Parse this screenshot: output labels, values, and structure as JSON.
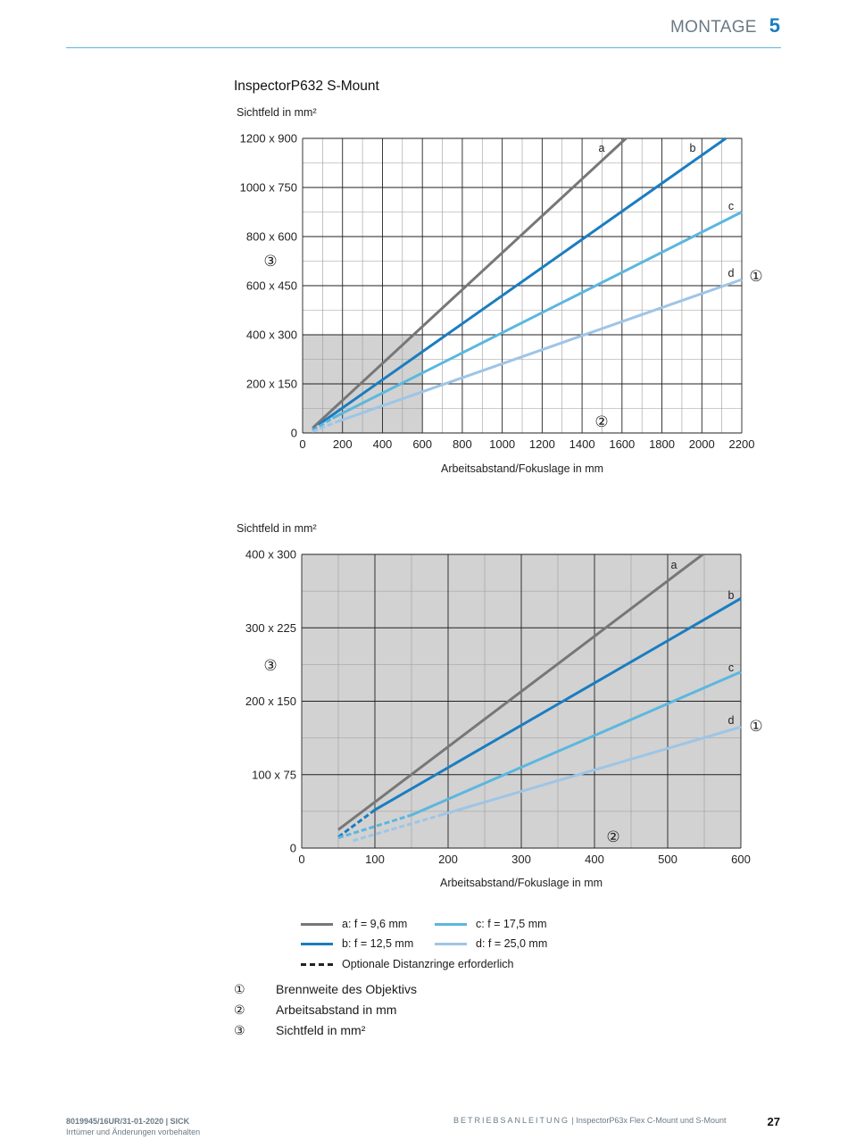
{
  "header": {
    "section_name": "MONTAGE",
    "section_number": "5"
  },
  "chart_data": [
    {
      "type": "line",
      "title": "InspectorP632 S-Mount",
      "ylabel": "Sichtfeld in mm²",
      "xlabel": "Arbeitsabstand/Fokuslage in mm",
      "xlim": [
        0,
        2200
      ],
      "ylim": [
        0,
        1200
      ],
      "x_ticks": [
        0,
        200,
        400,
        600,
        800,
        1000,
        1200,
        1400,
        1600,
        1800,
        2000,
        2200
      ],
      "y_ticks": [
        {
          "value": 0,
          "label": "0"
        },
        {
          "value": 200,
          "label": "200 x 150"
        },
        {
          "value": 400,
          "label": "400 x 300"
        },
        {
          "value": 600,
          "label": "600 x 450"
        },
        {
          "value": 800,
          "label": "800 x 600"
        },
        {
          "value": 1000,
          "label": "1000 x 750"
        },
        {
          "value": 1200,
          "label": "1200 x 900"
        }
      ],
      "shaded_region": {
        "x": [
          0,
          600
        ],
        "y": [
          0,
          400
        ]
      },
      "grid": true,
      "series": [
        {
          "name": "a",
          "color": "#777777",
          "dashed": {
            "x": [
              50,
              50
            ],
            "y": [
              20,
              20
            ]
          },
          "solid": {
            "x": [
              50,
              1620
            ],
            "y": [
              20,
              1200
            ]
          }
        },
        {
          "name": "b",
          "color": "#1a7dc0",
          "dashed": {
            "x": [
              50,
              100
            ],
            "y": [
              10,
              45
            ]
          },
          "solid": {
            "x": [
              100,
              2120
            ],
            "y": [
              45,
              1200
            ]
          }
        },
        {
          "name": "c",
          "color": "#5bb7df",
          "dashed": {
            "x": [
              50,
              150
            ],
            "y": [
              10,
              60
            ]
          },
          "solid": {
            "x": [
              150,
              2200
            ],
            "y": [
              60,
              900
            ]
          }
        },
        {
          "name": "d",
          "color": "#9ec5e6",
          "dashed": {
            "x": [
              50,
              170
            ],
            "y": [
              5,
              45
            ]
          },
          "solid": {
            "x": [
              170,
              2200
            ],
            "y": [
              45,
              625
            ]
          }
        }
      ],
      "annotations": {
        "focal": "①",
        "distance": "②",
        "field": "③"
      }
    },
    {
      "type": "line",
      "ylabel": "Sichtfeld in mm²",
      "xlabel": "Arbeitsabstand/Fokuslage in mm",
      "xlim": [
        0,
        600
      ],
      "ylim": [
        0,
        400
      ],
      "x_ticks": [
        0,
        100,
        200,
        300,
        400,
        500,
        600
      ],
      "y_ticks": [
        {
          "value": 0,
          "label": "0"
        },
        {
          "value": 100,
          "label": "100 x 75"
        },
        {
          "value": 200,
          "label": "200 x 150"
        },
        {
          "value": 300,
          "label": "300 x 225"
        },
        {
          "value": 400,
          "label": "400 x 300"
        }
      ],
      "shaded_region": {
        "x": [
          0,
          600
        ],
        "y": [
          0,
          400
        ]
      },
      "grid": true,
      "series": [
        {
          "name": "a",
          "color": "#777777",
          "dashed": {
            "x": [
              50,
              50
            ],
            "y": [
              25,
              25
            ]
          },
          "solid": {
            "x": [
              50,
              548
            ],
            "y": [
              25,
              400
            ]
          }
        },
        {
          "name": "b",
          "color": "#1a7dc0",
          "dashed": {
            "x": [
              50,
              100
            ],
            "y": [
              15,
              52
            ]
          },
          "solid": {
            "x": [
              100,
              600
            ],
            "y": [
              52,
              340
            ]
          }
        },
        {
          "name": "c",
          "color": "#5bb7df",
          "dashed": {
            "x": [
              50,
              150
            ],
            "y": [
              14,
              45
            ]
          },
          "solid": {
            "x": [
              150,
              600
            ],
            "y": [
              45,
              240
            ]
          }
        },
        {
          "name": "d",
          "color": "#9ec5e6",
          "dashed": {
            "x": [
              70,
              190
            ],
            "y": [
              10,
              45
            ]
          },
          "solid": {
            "x": [
              190,
              600
            ],
            "y": [
              45,
              165
            ]
          }
        }
      ],
      "annotations": {
        "focal": "①",
        "distance": "②",
        "field": "③"
      }
    }
  ],
  "legend": {
    "a": "a: f = 9,6 mm",
    "b": "b: f = 12,5 mm",
    "c": "c: f = 17,5 mm",
    "d": "d: f = 25,0 mm",
    "dashed": "Optionale Distanzringe erforderlich"
  },
  "notes": [
    {
      "num": "①",
      "text": "Brennweite des Objektivs"
    },
    {
      "num": "②",
      "text": "Arbeitsabstand in mm"
    },
    {
      "num": "③",
      "text": "Sichtfeld in mm²"
    }
  ],
  "footer": {
    "doc_id": "8019945/16UR/31-01-2020 | SICK",
    "disclaimer": "Irrtümer und Änderungen vorbehalten",
    "manual_label": "BETRIEBSANLEITUNG",
    "manual_title": "| InspectorP63x Flex C-Mount und S-Mount",
    "page": "27"
  },
  "colors": {
    "accent": "#1a7dc0",
    "rule": "#5eb7e0",
    "shade": "#d2d2d2"
  }
}
